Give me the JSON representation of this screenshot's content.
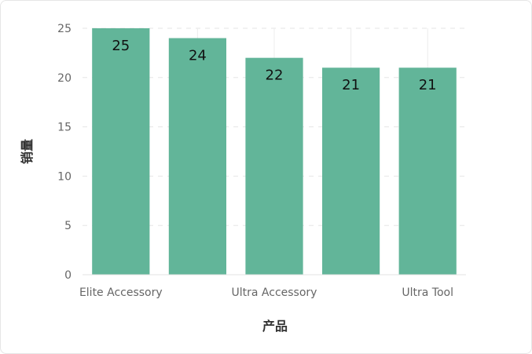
{
  "chart_data": {
    "type": "bar",
    "categories": [
      "Elite Accessory",
      "",
      "Ultra Accessory",
      "",
      "Ultra Tool"
    ],
    "values": [
      25,
      24,
      22,
      21,
      21
    ],
    "title": "",
    "xlabel": "产品",
    "ylabel": "销量",
    "ylim": [
      0,
      25
    ],
    "yticks": [
      0,
      5,
      10,
      15,
      20,
      25
    ],
    "grid": true,
    "bar_color": "#62b599"
  }
}
